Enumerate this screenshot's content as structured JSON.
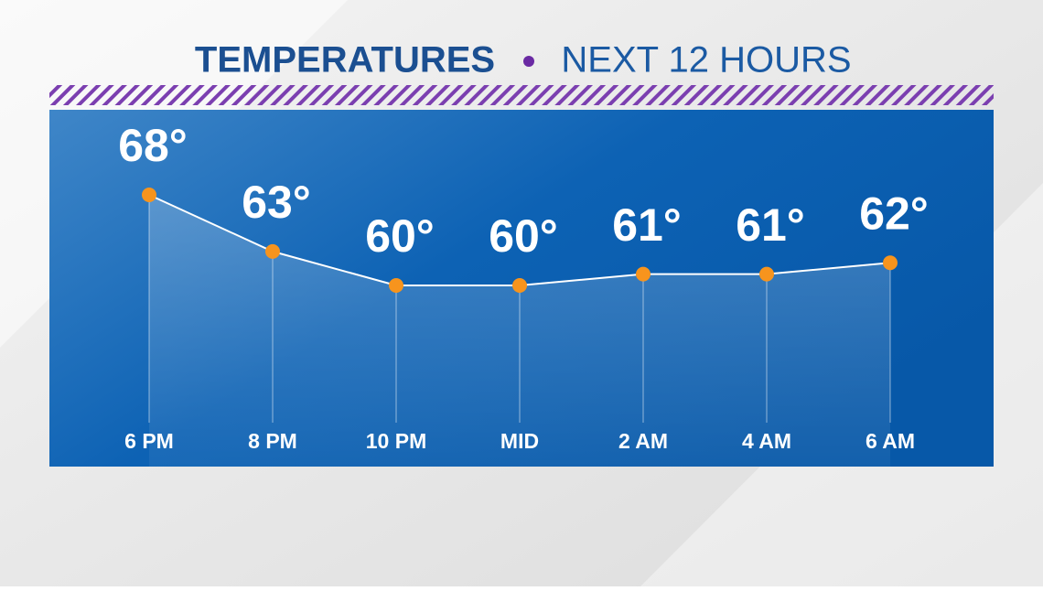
{
  "chart_data": {
    "type": "line",
    "title": "TEMPERATURES",
    "subtitle": "NEXT 12 HOURS",
    "categories": [
      "6 PM",
      "8 PM",
      "10 PM",
      "MID",
      "2 AM",
      "4 AM",
      "6 AM"
    ],
    "values": [
      68,
      63,
      60,
      60,
      61,
      61,
      62
    ],
    "value_labels": [
      "68°",
      "63°",
      "60°",
      "60°",
      "61°",
      "61°",
      "62°"
    ],
    "color": "#f7941d",
    "line_color": "#ffffff"
  }
}
